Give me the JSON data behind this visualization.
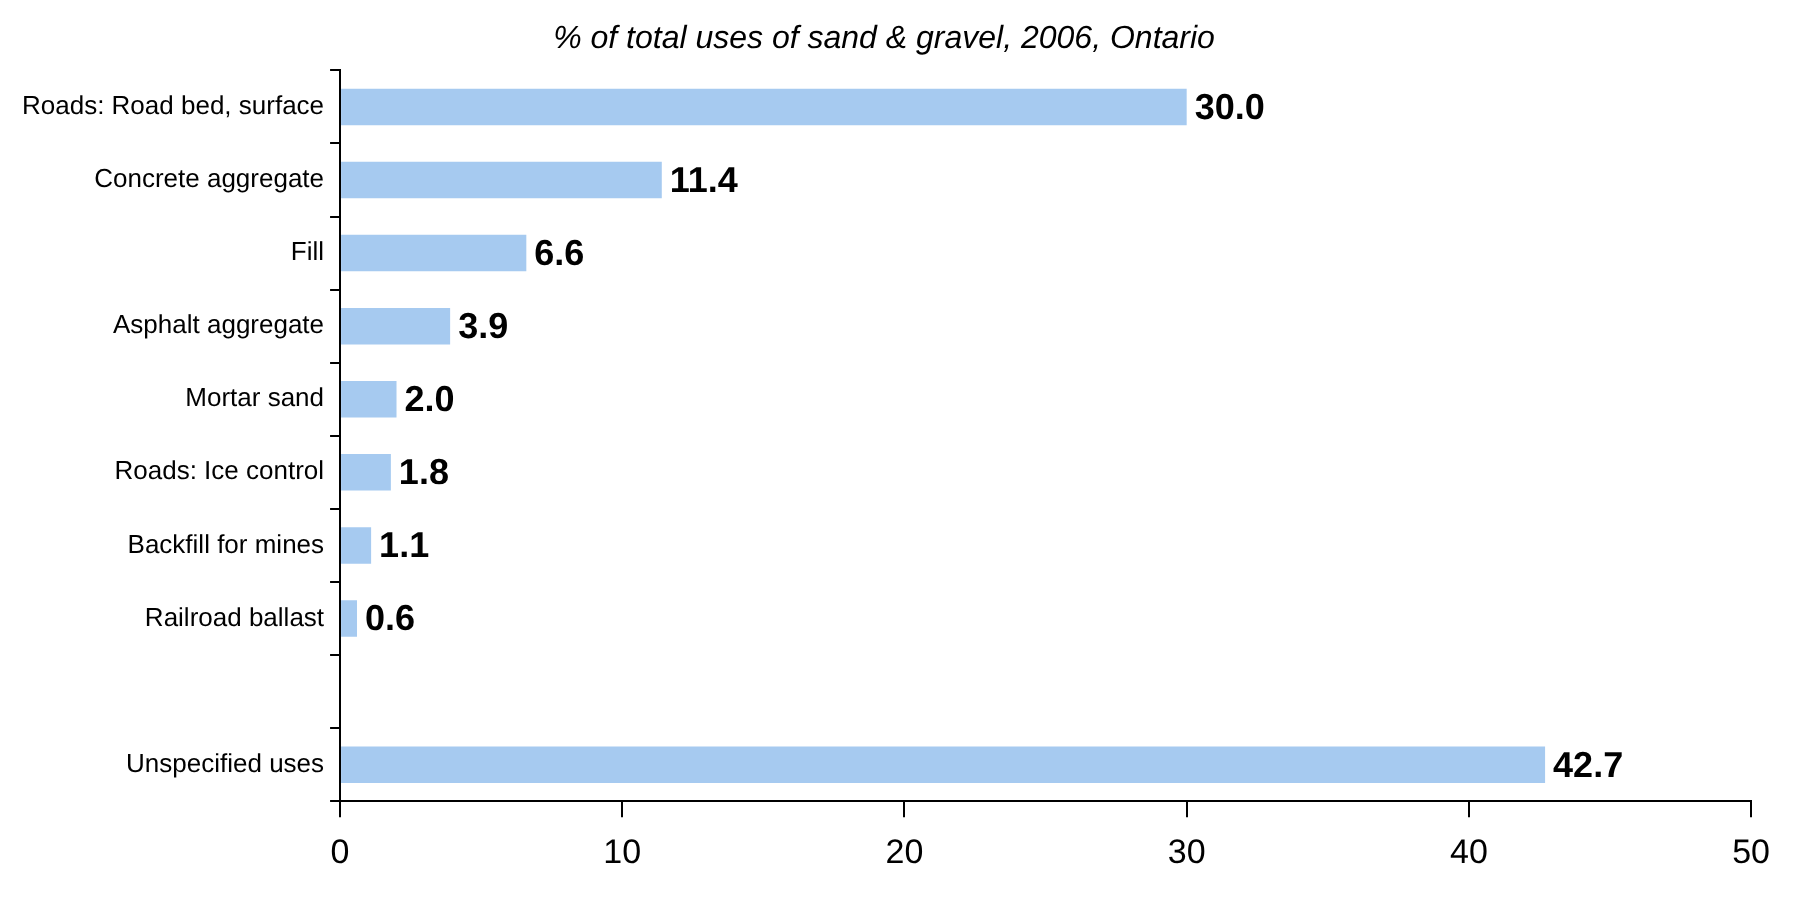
{
  "chart_data": {
    "type": "bar",
    "orientation": "horizontal",
    "title": "% of total uses of sand & gravel, 2006, Ontario",
    "categories": [
      "Roads: Road bed, surface",
      "Concrete aggregate",
      "Fill",
      "Asphalt aggregate",
      "Mortar sand",
      "Roads: Ice control",
      "Backfill for mines",
      "Railroad ballast",
      null,
      "Unspecified uses"
    ],
    "values": [
      30.0,
      11.4,
      6.6,
      3.9,
      2.0,
      1.8,
      1.1,
      0.6,
      null,
      42.7
    ],
    "value_labels": [
      "30.0",
      "11.4",
      "6.6",
      "3.9",
      "2.0",
      "1.8",
      "1.1",
      "0.6",
      null,
      "42.7"
    ],
    "color": "#a6caf0",
    "xlim": [
      0,
      50
    ],
    "xticks": [
      0,
      10,
      20,
      30,
      40,
      50
    ],
    "grid": false,
    "legend": false
  }
}
